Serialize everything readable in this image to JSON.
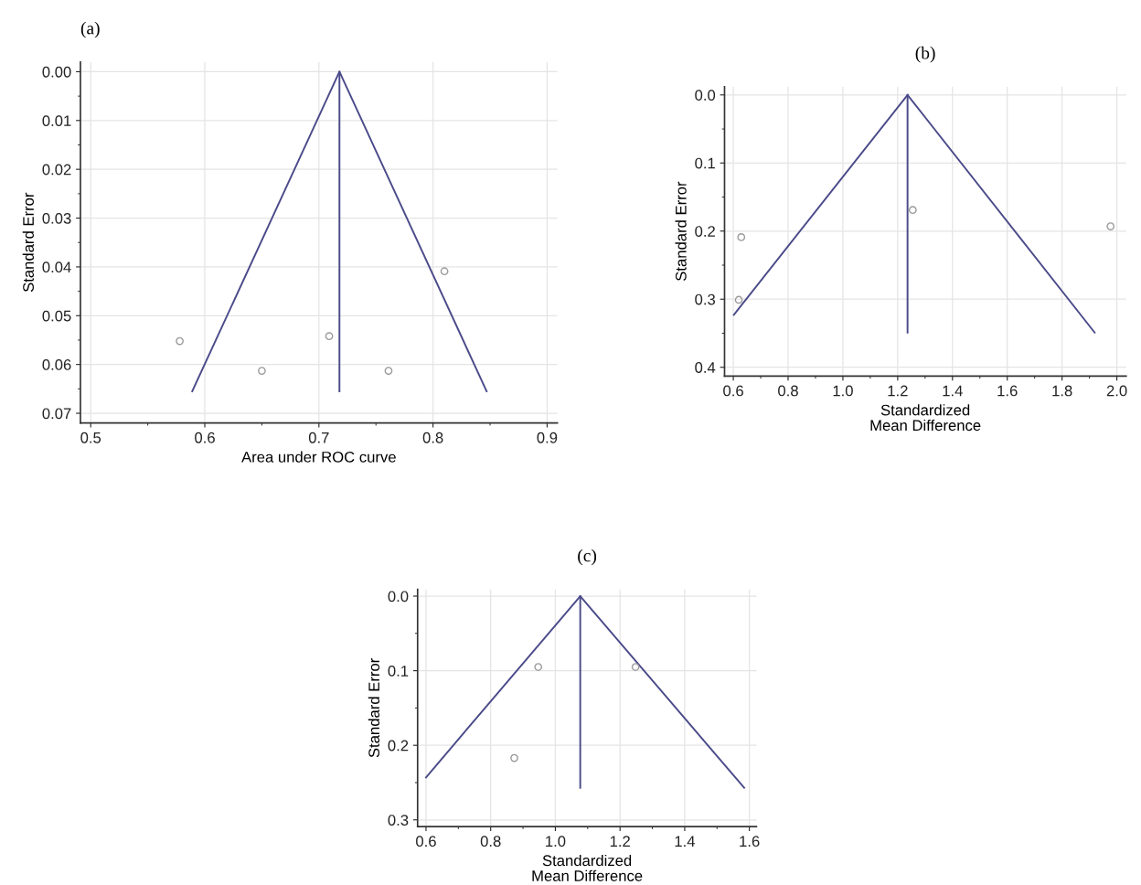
{
  "chart_data": [
    {
      "type": "scatter",
      "title": "(a)",
      "xlabel": "Area under ROC curve",
      "ylabel": "Standard Error",
      "grid": true,
      "line_style": "solid",
      "xlim": [
        0.491,
        0.909
      ],
      "ylim": [
        0.072,
        -0.002
      ],
      "xticks": [
        {
          "value": 0.5,
          "label": "0.5"
        },
        {
          "value": 0.6,
          "label": "0.6"
        },
        {
          "value": 0.7,
          "label": "0.7"
        },
        {
          "value": 0.8,
          "label": "0.8"
        },
        {
          "value": 0.9,
          "label": "0.9"
        }
      ],
      "yticks": [
        {
          "value": 0.0,
          "label": "0.00"
        },
        {
          "value": 0.01,
          "label": "0.01"
        },
        {
          "value": 0.02,
          "label": "0.02"
        },
        {
          "value": 0.03,
          "label": "0.03"
        },
        {
          "value": 0.04,
          "label": "0.04"
        },
        {
          "value": 0.05,
          "label": "0.05"
        },
        {
          "value": 0.06,
          "label": "0.06"
        },
        {
          "value": 0.07,
          "label": "0.07"
        }
      ],
      "series": [
        {
          "color": "#9a9a9a",
          "marker": "circle",
          "x": [
            0.578,
            0.65,
            0.709,
            0.761,
            0.81
          ],
          "values": [
            0.0552,
            0.0613,
            0.0542,
            0.0613,
            0.0409
          ]
        },
        {
          "type": "line",
          "color": "#4b4b8a",
          "x": [
            0.589,
            0.718,
            0.847
          ],
          "values": [
            0.0655,
            0.0,
            0.0655
          ]
        },
        {
          "type": "line",
          "color": "#4b4b8a",
          "x": [
            0.718,
            0.718
          ],
          "values": [
            0.0,
            0.0655
          ]
        }
      ]
    },
    {
      "type": "scatter",
      "title": "(b)",
      "xlabel": "Standardized\nMean Difference",
      "ylabel": "Standard Error",
      "grid": true,
      "line_style": "solid",
      "xlim": [
        0.568,
        2.034
      ],
      "ylim": [
        0.413,
        -0.012
      ],
      "xticks": [
        {
          "value": 0.6,
          "label": "0.6"
        },
        {
          "value": 0.8,
          "label": "0.8"
        },
        {
          "value": 1.0,
          "label": "1.0"
        },
        {
          "value": 1.2,
          "label": "1.2"
        },
        {
          "value": 1.4,
          "label": "1.4"
        },
        {
          "value": 1.6,
          "label": "1.6"
        },
        {
          "value": 1.8,
          "label": "1.8"
        },
        {
          "value": 2.0,
          "label": "2.0"
        }
      ],
      "yticks": [
        {
          "value": 0.0,
          "label": "0.0"
        },
        {
          "value": 0.1,
          "label": "0.1"
        },
        {
          "value": 0.2,
          "label": "0.2"
        },
        {
          "value": 0.3,
          "label": "0.3"
        },
        {
          "value": 0.4,
          "label": "0.4"
        }
      ],
      "series": [
        {
          "color": "#9a9a9a",
          "marker": "circle",
          "x": [
            0.629,
            0.62,
            1.255,
            1.977
          ],
          "values": [
            0.209,
            0.301,
            0.169,
            0.193
          ]
        },
        {
          "type": "line",
          "color": "#4b4b8a",
          "x": [
            0.602,
            1.236,
            1.919
          ],
          "values": [
            0.323,
            0.0,
            0.349
          ]
        },
        {
          "type": "line",
          "color": "#4b4b8a",
          "x": [
            1.236,
            1.236
          ],
          "values": [
            0.0,
            0.349
          ]
        }
      ]
    },
    {
      "type": "scatter",
      "title": "(c)",
      "xlabel": "Standardized\nMean Difference",
      "ylabel": "Standard Error",
      "grid": true,
      "line_style": "solid",
      "xlim": [
        0.574,
        1.622
      ],
      "ylim": [
        0.309,
        -0.009
      ],
      "xticks": [
        {
          "value": 0.6,
          "label": "0.6"
        },
        {
          "value": 0.8,
          "label": "0.8"
        },
        {
          "value": 1.0,
          "label": "1.0"
        },
        {
          "value": 1.2,
          "label": "1.2"
        },
        {
          "value": 1.4,
          "label": "1.4"
        },
        {
          "value": 1.6,
          "label": "1.6"
        }
      ],
      "yticks": [
        {
          "value": 0.0,
          "label": "0.0"
        },
        {
          "value": 0.1,
          "label": "0.1"
        },
        {
          "value": 0.2,
          "label": "0.2"
        },
        {
          "value": 0.3,
          "label": "0.3"
        }
      ],
      "series": [
        {
          "color": "#9a9a9a",
          "marker": "circle",
          "x": [
            0.947,
            1.248,
            0.873
          ],
          "values": [
            0.095,
            0.095,
            0.217
          ]
        },
        {
          "type": "line",
          "color": "#4b4b8a",
          "x": [
            0.6,
            1.077,
            1.584
          ],
          "values": [
            0.243,
            0.0,
            0.257
          ]
        },
        {
          "type": "line",
          "color": "#4b4b8a",
          "x": [
            1.077,
            1.077
          ],
          "values": [
            0.0,
            0.257
          ]
        }
      ]
    }
  ]
}
